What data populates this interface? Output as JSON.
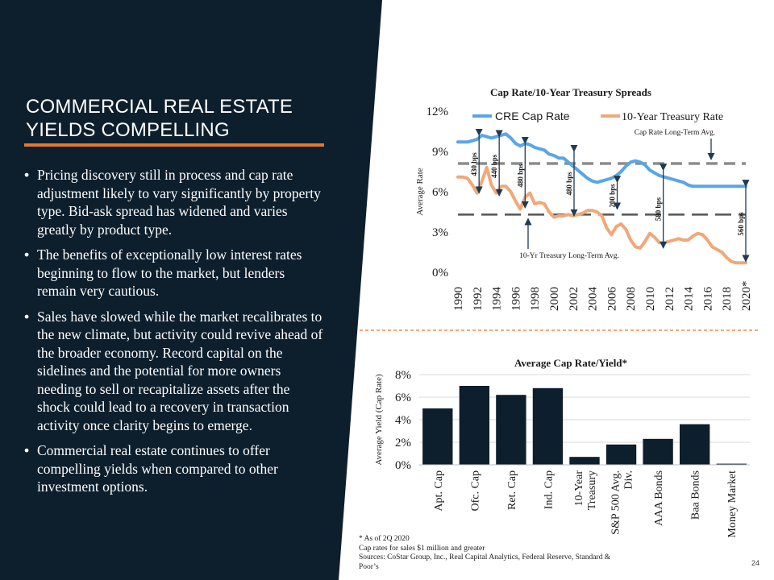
{
  "colors": {
    "navy": "#0d1e2c",
    "orange_accent": "#e8782a",
    "cre_line": "#5aa5e6",
    "treasury_line": "#f0a878",
    "cap_avg_line": "#8c8c8c",
    "treasury_avg_line": "#555555",
    "bar": "#0d1e2c",
    "arrow": "#1f3a55",
    "separator": "#e8782a"
  },
  "slide": {
    "title_line1": "COMMERCIAL REAL ESTATE",
    "title_line2": "YIELDS COMPELLING",
    "bullets": [
      "Pricing discovery still in process and cap rate adjustment likely to vary significantly by property type. Bid-ask spread has widened and varies greatly by product type.",
      "The benefits of exceptionally low interest rates beginning to flow to the market, but lenders remain very cautious.",
      "Sales have slowed while the market recalibrates to the new climate, but activity could revive ahead of the broader economy. Record capital on the sidelines and the potential for more owners needing to sell or recapitalize assets after the shock could lead to a recovery in transaction activity once clarity begins to emerge.",
      "Commercial real estate continues to offer compelling yields when compared to other investment options."
    ],
    "footnote_lines": [
      "* As of 2Q 2020",
      "Cap rates for sales $1 million and greater",
      "Sources: CoStar Group, Inc., Real Capital Analytics, Federal Reserve, Standard &",
      "Poor’s"
    ],
    "page_number": "24"
  },
  "chart_data": [
    {
      "type": "line",
      "title": "Cap Rate/10-Year Treasury Spreads",
      "ylabel": "Average Rate",
      "ylim": [
        0,
        12
      ],
      "ytick_values": [
        0,
        3,
        6,
        9,
        12
      ],
      "ytick_labels": [
        "0%",
        "3%",
        "6%",
        "9%",
        "12%"
      ],
      "xtick_labels": [
        "1990",
        "1992",
        "1994",
        "1996",
        "1998",
        "2000",
        "2002",
        "2004",
        "2006",
        "2008",
        "2010",
        "2012",
        "2014",
        "2016",
        "2018",
        "2020*"
      ],
      "x": [
        1990,
        1990.5,
        1991,
        1991.5,
        1992,
        1992.5,
        1993,
        1993.5,
        1994,
        1994.5,
        1995,
        1995.5,
        1996,
        1996.5,
        1997,
        1997.5,
        1998,
        1998.5,
        1999,
        1999.5,
        2000,
        2000.5,
        2001,
        2001.5,
        2002,
        2002.5,
        2003,
        2003.5,
        2004,
        2004.5,
        2005,
        2005.5,
        2006,
        2006.5,
        2007,
        2007.5,
        2008,
        2008.5,
        2009,
        2009.5,
        2010,
        2010.5,
        2011,
        2011.5,
        2012,
        2012.5,
        2013,
        2013.5,
        2014,
        2014.5,
        2015,
        2015.5,
        2016,
        2016.5,
        2017,
        2017.5,
        2018,
        2018.5,
        2019,
        2019.5,
        2020
      ],
      "series": [
        {
          "name": "CRE Cap Rate",
          "values": [
            9.7,
            9.7,
            9.7,
            9.8,
            9.9,
            10.2,
            10.1,
            10.0,
            10.1,
            10.2,
            10.3,
            10.0,
            9.6,
            9.4,
            9.6,
            9.5,
            9.3,
            9.2,
            9.1,
            8.8,
            8.7,
            8.5,
            8.5,
            8.2,
            7.9,
            7.6,
            7.3,
            7.0,
            6.8,
            6.7,
            6.8,
            6.9,
            7.0,
            7.2,
            7.5,
            7.9,
            8.2,
            8.3,
            8.2,
            8.0,
            7.6,
            7.4,
            7.2,
            7.1,
            7.0,
            6.9,
            6.8,
            6.7,
            6.5,
            6.4,
            6.4,
            6.4,
            6.4,
            6.4,
            6.4,
            6.4,
            6.4,
            6.4,
            6.4,
            6.4,
            6.4
          ]
        },
        {
          "name": "10-Year Treasury Rate",
          "values": [
            7.1,
            7.1,
            7.0,
            6.5,
            5.9,
            6.8,
            7.8,
            6.5,
            5.9,
            6.4,
            6.4,
            6.0,
            5.3,
            4.7,
            5.6,
            5.9,
            5.1,
            5.2,
            5.1,
            4.5,
            4.1,
            4.2,
            4.2,
            4.3,
            4.2,
            4.3,
            4.4,
            4.6,
            4.6,
            4.5,
            4.2,
            3.3,
            2.8,
            3.4,
            3.6,
            3.2,
            2.4,
            1.9,
            1.8,
            2.3,
            2.9,
            2.6,
            2.2,
            2.2,
            2.3,
            2.4,
            2.5,
            2.4,
            2.4,
            2.7,
            2.9,
            2.8,
            2.4,
            1.9,
            1.7,
            1.5,
            1.1,
            0.8,
            0.7,
            0.7,
            0.7
          ]
        }
      ],
      "cap_rate_longterm_avg": 8.1,
      "treasury_longterm_avg": 4.3,
      "annotations": {
        "cap_avg_label": "Cap Rate Long-Term Avg.",
        "treasury_avg_label": "10-Yr Treasury Long-Term Avg."
      },
      "spreads": [
        {
          "label": "430 bps",
          "year": 1992.2,
          "top": 10.2,
          "bottom": 5.9
        },
        {
          "label": "440 bps",
          "year": 1994.3,
          "top": 10.1,
          "bottom": 5.7
        },
        {
          "label": "480 bps",
          "year": 1997.0,
          "top": 9.6,
          "bottom": 4.8
        },
        {
          "label": "480 bps",
          "year": 2002.1,
          "top": 9.0,
          "bottom": 4.2
        },
        {
          "label": "200 bps",
          "year": 2006.6,
          "top": 6.7,
          "bottom": 4.7
        },
        {
          "label": "580 bps",
          "year": 2011.4,
          "top": 7.6,
          "bottom": 1.8
        },
        {
          "label": "560 bps",
          "year": 2020.0,
          "top": 6.4,
          "bottom": 0.8
        }
      ]
    },
    {
      "type": "bar",
      "title": "Average Cap Rate/Yield*",
      "ylabel": "Average Yield (Cap Rate)",
      "ylim": [
        0,
        8
      ],
      "ytick_values": [
        0,
        2,
        4,
        6,
        8
      ],
      "ytick_labels": [
        "0%",
        "2%",
        "4%",
        "6%",
        "8%"
      ],
      "categories": [
        [
          "Apt. Cap"
        ],
        [
          "Ofc. Cap"
        ],
        [
          "Ret. Cap"
        ],
        [
          "Ind. Cap"
        ],
        [
          "10-Year",
          "Treasury"
        ],
        [
          "S&P 500 Avg.",
          "Div."
        ],
        [
          "AAA Bonds"
        ],
        [
          "Baa Bonds"
        ],
        [
          "Money Market"
        ]
      ],
      "values": [
        5.0,
        7.0,
        6.2,
        6.8,
        0.7,
        1.8,
        2.3,
        3.6,
        0.1
      ]
    }
  ]
}
